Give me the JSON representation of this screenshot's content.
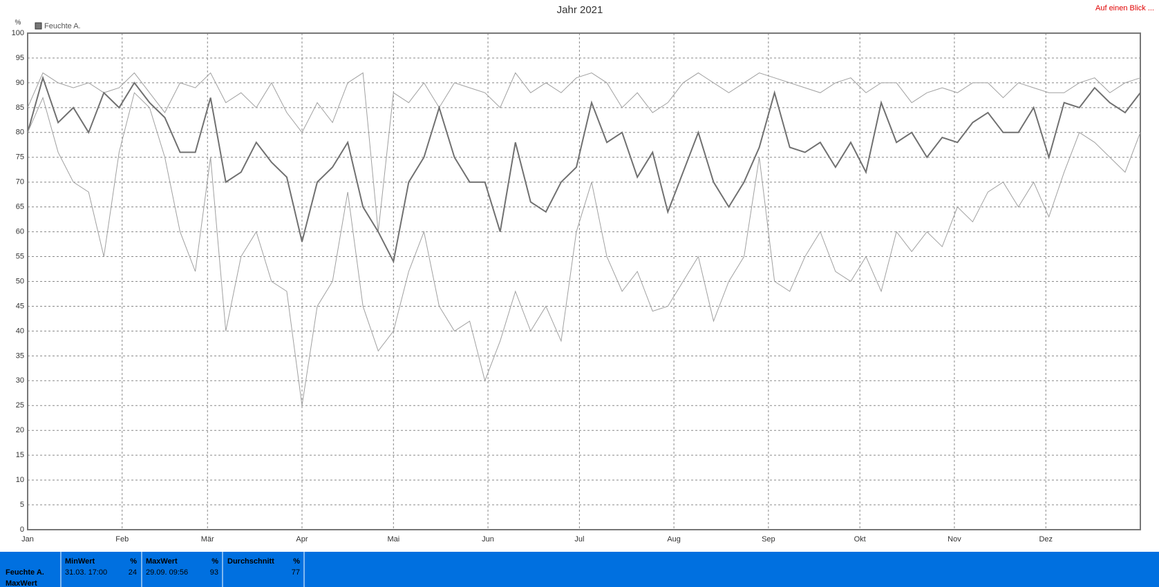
{
  "chart_data": {
    "type": "line",
    "title": "Jahr 2021",
    "y_label": "%",
    "legend": "Feuchte A.",
    "x": [
      0,
      5,
      10,
      15,
      20,
      25,
      30,
      35,
      40,
      45,
      50,
      55,
      60,
      65,
      70,
      75,
      80,
      85,
      90,
      95,
      100,
      105,
      110,
      115,
      120,
      125,
      130,
      135,
      140,
      145,
      150,
      155,
      160,
      165,
      170,
      175,
      180,
      185,
      190,
      195,
      200,
      205,
      210,
      215,
      220,
      225,
      230,
      235,
      240,
      245,
      250,
      255,
      260,
      265,
      270,
      275,
      280,
      285,
      290,
      295,
      300,
      305,
      310,
      315,
      320,
      325,
      330,
      335,
      340,
      345,
      350,
      355,
      360,
      365
    ],
    "series": [
      {
        "color": "#a0a0a0",
        "width": 1,
        "values": [
          85,
          92,
          90,
          89,
          90,
          88,
          89,
          92,
          88,
          84,
          90,
          89,
          92,
          86,
          88,
          85,
          90,
          84,
          80,
          86,
          82,
          90,
          92,
          60,
          88,
          86,
          90,
          85,
          90,
          89,
          88,
          85,
          92,
          88,
          90,
          88,
          91,
          92,
          90,
          85,
          88,
          84,
          86,
          90,
          92,
          90,
          88,
          90,
          92,
          91,
          90,
          89,
          88,
          90,
          91,
          88,
          90,
          90,
          86,
          88,
          89,
          88,
          90,
          90,
          87,
          90,
          89,
          88,
          88,
          90,
          91,
          88,
          90,
          91
        ]
      },
      {
        "color": "#707070",
        "width": 2,
        "values": [
          80,
          91,
          82,
          85,
          80,
          88,
          85,
          90,
          86,
          83,
          76,
          76,
          87,
          70,
          72,
          78,
          74,
          71,
          58,
          70,
          73,
          78,
          65,
          60,
          54,
          70,
          75,
          85,
          75,
          70,
          70,
          60,
          78,
          66,
          64,
          70,
          73,
          86,
          78,
          80,
          71,
          76,
          64,
          72,
          80,
          70,
          65,
          70,
          77,
          88,
          77,
          76,
          78,
          73,
          78,
          72,
          86,
          78,
          80,
          75,
          79,
          78,
          82,
          84,
          80,
          80,
          85,
          75,
          86,
          85,
          89,
          86,
          84,
          88
        ]
      },
      {
        "color": "#a0a0a0",
        "width": 1,
        "values": [
          80,
          87,
          76,
          70,
          68,
          55,
          76,
          88,
          85,
          75,
          60,
          52,
          75,
          40,
          55,
          60,
          50,
          48,
          25,
          45,
          50,
          68,
          45,
          36,
          40,
          52,
          60,
          45,
          40,
          42,
          30,
          38,
          48,
          40,
          45,
          38,
          60,
          70,
          55,
          48,
          52,
          44,
          45,
          50,
          55,
          42,
          50,
          55,
          75,
          50,
          48,
          55,
          60,
          52,
          50,
          55,
          48,
          60,
          56,
          60,
          57,
          65,
          62,
          68,
          70,
          65,
          70,
          63,
          72,
          80,
          78,
          75,
          72,
          80
        ]
      }
    ],
    "xlim": [
      0,
      365
    ],
    "xticks": [
      {
        "value": 0,
        "label": "Jan"
      },
      {
        "value": 31,
        "label": "Feb"
      },
      {
        "value": 59,
        "label": "Mär"
      },
      {
        "value": 90,
        "label": "Apr"
      },
      {
        "value": 120,
        "label": "Mai"
      },
      {
        "value": 151,
        "label": "Jun"
      },
      {
        "value": 181,
        "label": "Jul"
      },
      {
        "value": 212,
        "label": "Aug"
      },
      {
        "value": 243,
        "label": "Sep"
      },
      {
        "value": 273,
        "label": "Okt"
      },
      {
        "value": 304,
        "label": "Nov"
      },
      {
        "value": 334,
        "label": "Dez"
      }
    ],
    "ylim": [
      0,
      100
    ],
    "yticks": [
      0,
      5,
      10,
      15,
      20,
      25,
      30,
      35,
      40,
      45,
      50,
      55,
      60,
      65,
      70,
      75,
      80,
      85,
      90,
      95,
      100
    ],
    "grid": true
  },
  "link": "Auf einen Blick ...",
  "table": {
    "row_label": "Feuchte A.",
    "row_label_2": "MaxWert",
    "columns": [
      {
        "name": "MinWert",
        "unit": "%",
        "time": "31.03. 17:00",
        "value": 24
      },
      {
        "name": "MaxWert",
        "unit": "%",
        "time": "29.09. 09:56",
        "value": 93
      },
      {
        "name": "Durchschnitt",
        "unit": "%",
        "value": 77
      }
    ]
  }
}
